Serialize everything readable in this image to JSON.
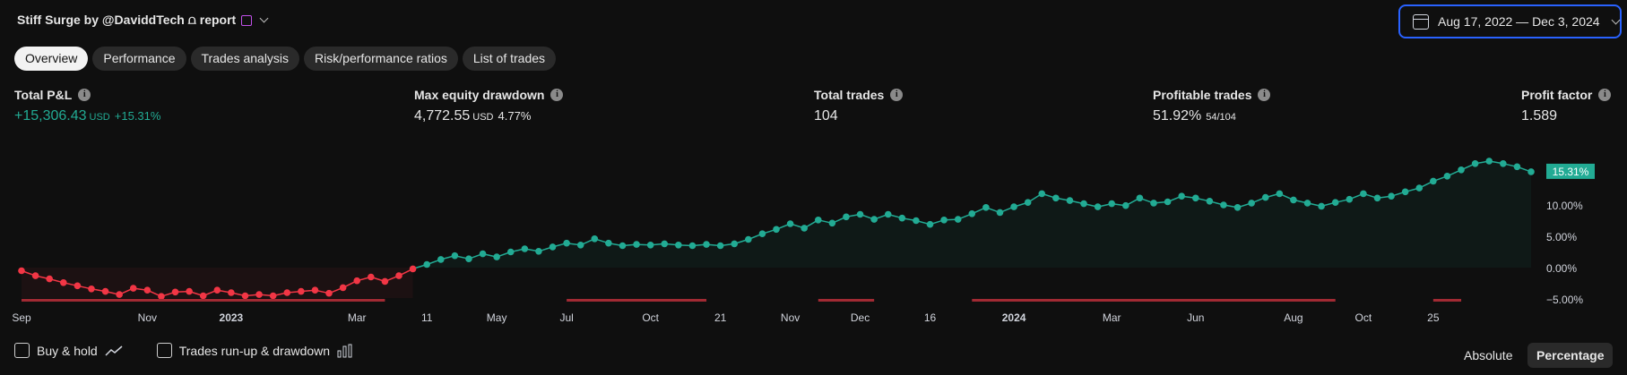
{
  "header": {
    "title": "Stiff Surge by @DaviddTech ⩍ report",
    "date_range": "Aug 17, 2022 — Dec 3, 2024"
  },
  "tabs": [
    {
      "label": "Overview",
      "active": true
    },
    {
      "label": "Performance",
      "active": false
    },
    {
      "label": "Trades analysis",
      "active": false
    },
    {
      "label": "Risk/performance ratios",
      "active": false
    },
    {
      "label": "List of trades",
      "active": false
    }
  ],
  "metrics": {
    "total_pnl": {
      "label": "Total P&L",
      "value": "+15,306.43",
      "unit": "USD",
      "sub": "+15.31%"
    },
    "max_drawdown": {
      "label": "Max equity drawdown",
      "value": "4,772.55",
      "unit": "USD",
      "sub": "4.77%"
    },
    "total_trades": {
      "label": "Total trades",
      "value": "104"
    },
    "profitable_trades": {
      "label": "Profitable trades",
      "value": "51.92%",
      "sub": "54/104"
    },
    "profit_factor": {
      "label": "Profit factor",
      "value": "1.589"
    }
  },
  "chart_data": {
    "type": "line",
    "y_axis_ticks": [
      "10.00%",
      "5.00%",
      "0.00%",
      "−5.00%"
    ],
    "y_tick_values": [
      10,
      5,
      0,
      -5
    ],
    "ylim": [
      -5,
      18.3
    ],
    "last_value_label": "15.31%",
    "x_tick_labels": [
      {
        "label": "Sep",
        "bold": false,
        "i": 0
      },
      {
        "label": "Nov",
        "bold": false,
        "i": 9
      },
      {
        "label": "2023",
        "bold": true,
        "i": 15
      },
      {
        "label": "Mar",
        "bold": false,
        "i": 24
      },
      {
        "label": "11",
        "bold": false,
        "i": 29
      },
      {
        "label": "May",
        "bold": false,
        "i": 34
      },
      {
        "label": "Jul",
        "bold": false,
        "i": 39
      },
      {
        "label": "Oct",
        "bold": false,
        "i": 45
      },
      {
        "label": "21",
        "bold": false,
        "i": 50
      },
      {
        "label": "Nov",
        "bold": false,
        "i": 55
      },
      {
        "label": "Dec",
        "bold": false,
        "i": 60
      },
      {
        "label": "16",
        "bold": false,
        "i": 65
      },
      {
        "label": "2024",
        "bold": true,
        "i": 71
      },
      {
        "label": "Mar",
        "bold": false,
        "i": 78
      },
      {
        "label": "Jun",
        "bold": false,
        "i": 84
      },
      {
        "label": "Aug",
        "bold": false,
        "i": 91
      },
      {
        "label": "Oct",
        "bold": false,
        "i": 96
      },
      {
        "label": "25",
        "bold": false,
        "i": 101
      }
    ],
    "values": [
      -0.5,
      -1.3,
      -1.8,
      -2.4,
      -2.9,
      -3.4,
      -3.8,
      -4.3,
      -3.3,
      -3.6,
      -4.6,
      -3.9,
      -3.8,
      -4.5,
      -3.6,
      -4.0,
      -4.5,
      -4.3,
      -4.5,
      -4.0,
      -3.8,
      -3.6,
      -4.1,
      -3.2,
      -2.1,
      -1.5,
      -2.2,
      -1.3,
      -0.2,
      0.5,
      1.3,
      1.9,
      1.4,
      2.2,
      1.7,
      2.5,
      3.0,
      2.6,
      3.3,
      3.9,
      3.6,
      4.6,
      3.9,
      3.5,
      3.7,
      3.6,
      3.8,
      3.6,
      3.5,
      3.7,
      3.5,
      3.8,
      4.5,
      5.4,
      6.1,
      7.0,
      6.3,
      7.6,
      7.1,
      8.1,
      8.5,
      7.7,
      8.5,
      7.9,
      7.5,
      6.9,
      7.6,
      7.7,
      8.6,
      9.6,
      8.8,
      9.7,
      10.4,
      11.8,
      11.1,
      10.7,
      10.2,
      9.7,
      10.2,
      9.9,
      11.1,
      10.3,
      10.5,
      11.4,
      11.1,
      10.6,
      10.0,
      9.6,
      10.3,
      11.2,
      11.8,
      10.8,
      10.3,
      9.8,
      10.4,
      10.9,
      11.8,
      11.1,
      11.4,
      12.1,
      12.7,
      13.8,
      14.6,
      15.6,
      16.6,
      17.0,
      16.6,
      16.1,
      15.3
    ],
    "drawdown_segments": [
      [
        0,
        26
      ],
      [
        39,
        49
      ],
      [
        57,
        61
      ],
      [
        68,
        94
      ],
      [
        101,
        103
      ]
    ]
  },
  "footer": {
    "buy_hold_label": "Buy & hold",
    "runup_label": "Trades run-up & drawdown",
    "absolute_label": "Absolute",
    "percentage_label": "Percentage"
  },
  "colors": {
    "positive": "#22ab94",
    "negative": "#f23645",
    "drawdown_bar": "#a12a33",
    "accent": "#2962ff"
  }
}
